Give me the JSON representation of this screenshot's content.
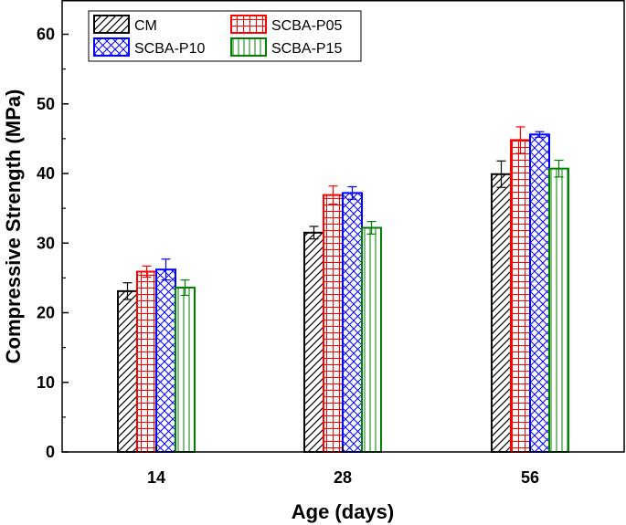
{
  "chart_data": {
    "type": "bar",
    "title": "",
    "xlabel": "Age (days)",
    "ylabel": "Compressive Strength (MPa)",
    "categories": [
      "14",
      "28",
      "56"
    ],
    "ylim": [
      0,
      65
    ],
    "yticks": [
      "0",
      "10",
      "20",
      "30",
      "40",
      "50",
      "60"
    ],
    "legend_position": "top-left",
    "grid": false,
    "series": [
      {
        "name": "CM",
        "color": "#000000",
        "pattern": "diagonal-hatch",
        "values": [
          23.1,
          31.5,
          39.9
        ],
        "errors": [
          1.2,
          0.9,
          1.9
        ]
      },
      {
        "name": "SCBA-P05",
        "color": "#ff0000",
        "pattern": "grid-hatch",
        "values": [
          25.9,
          36.9,
          44.8
        ],
        "errors": [
          0.8,
          1.3,
          1.9
        ]
      },
      {
        "name": "SCBA-P10",
        "color": "#0000ff",
        "pattern": "cross-hatch",
        "values": [
          26.2,
          37.2,
          45.6
        ],
        "errors": [
          1.5,
          0.9,
          0.4
        ]
      },
      {
        "name": "SCBA-P15",
        "color": "#007f00",
        "pattern": "vertical-hatch",
        "values": [
          23.6,
          32.2,
          40.7
        ],
        "errors": [
          1.1,
          0.9,
          1.2
        ]
      }
    ]
  }
}
